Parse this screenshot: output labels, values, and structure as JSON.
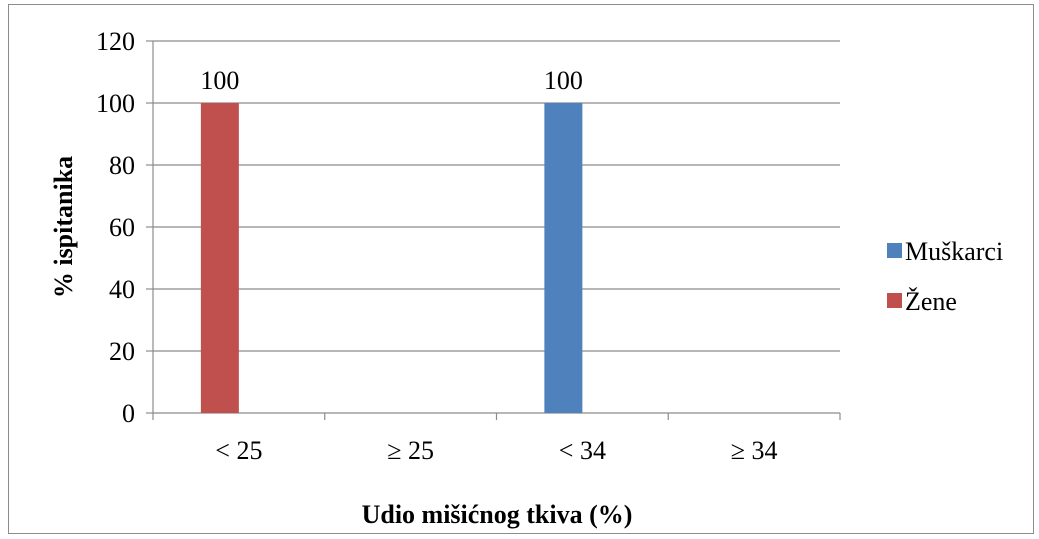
{
  "chart_data": {
    "type": "bar",
    "title": "",
    "xlabel": "Udio mišićnog tkiva (%)",
    "ylabel": "% ispitanika",
    "categories": [
      "< 25",
      "≥ 25",
      "< 34",
      "≥ 34"
    ],
    "ylim": [
      0,
      120
    ],
    "yticks": [
      0,
      20,
      40,
      60,
      80,
      100,
      120
    ],
    "grid": true,
    "legend_position": "right",
    "series": [
      {
        "name": "Muškarci",
        "color": "#4f81bd",
        "values": [
          null,
          null,
          100,
          0
        ]
      },
      {
        "name": "Žene",
        "color": "#c0504d",
        "values": [
          100,
          0,
          null,
          null
        ]
      }
    ],
    "data_labels": [
      {
        "category": "< 25",
        "series": "Žene",
        "text": "100"
      },
      {
        "category": "< 34",
        "series": "Muškarci",
        "text": "100"
      }
    ]
  }
}
